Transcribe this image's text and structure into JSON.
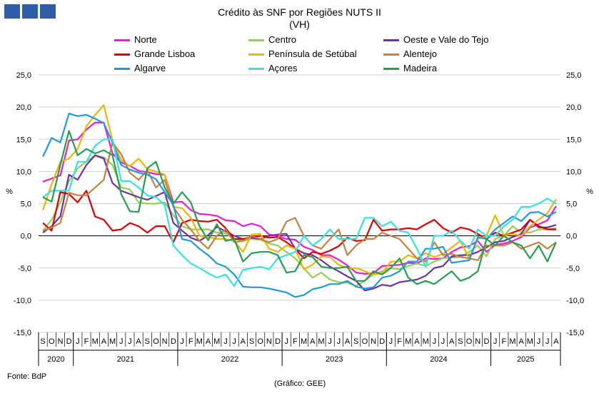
{
  "logo": {
    "blocks": 3,
    "color": "#2b5ea7"
  },
  "title": "Crédito às SNF por Regiões NUTS II",
  "subtitle": "(VH)",
  "source": "Fonte: BdP",
  "credit": "(Gráfico: GEE)",
  "chart_data": {
    "type": "line",
    "title": "Crédito às SNF por Regiões NUTS II",
    "subtitle": "(VH)",
    "ylabel_left": "%",
    "ylabel_right": "%",
    "ylim": [
      -15,
      25
    ],
    "yticks": [
      "25,0",
      "20,0",
      "15,0",
      "10,0",
      "5,0",
      "0,0",
      "-5,0",
      "-10,0",
      "-15,0"
    ],
    "grid": true,
    "legend_position": "top",
    "month_labels": [
      "S",
      "O",
      "N",
      "D",
      "J",
      "F",
      "M",
      "A",
      "M",
      "J",
      "J",
      "A",
      "S",
      "O",
      "N",
      "D",
      "J",
      "F",
      "M",
      "A",
      "M",
      "J",
      "J",
      "A",
      "S",
      "O",
      "N",
      "D",
      "J",
      "F",
      "M",
      "A",
      "M",
      "J",
      "J",
      "A",
      "S",
      "O",
      "N",
      "D",
      "J",
      "F",
      "M",
      "A",
      "M",
      "J",
      "J",
      "A",
      "S",
      "O",
      "N",
      "D",
      "J",
      "F",
      "M",
      "A",
      "M",
      "J",
      "J",
      "A"
    ],
    "year_groups": [
      {
        "label": "2020",
        "months": 4
      },
      {
        "label": "2021",
        "months": 12
      },
      {
        "label": "2022",
        "months": 12
      },
      {
        "label": "2023",
        "months": 12
      },
      {
        "label": "2024",
        "months": 12
      },
      {
        "label": "2025",
        "months": 8
      }
    ],
    "series": [
      {
        "name": "Norte",
        "color": "#e81cd8",
        "values": [
          8.4,
          8.9,
          9.4,
          14.8,
          15.0,
          16.5,
          17.6,
          17.6,
          12.8,
          11.4,
          10.9,
          10.1,
          9.9,
          9.6,
          9.5,
          5.2,
          5.3,
          4.0,
          3.4,
          3.3,
          3.1,
          2.4,
          2.3,
          1.5,
          1.9,
          1.5,
          0.2,
          0.0,
          -0.5,
          -0.6,
          -1.7,
          -2.2,
          -3.0,
          -3.0,
          -3.7,
          -4.6,
          -5.7,
          -5.9,
          -5.8,
          -4.7,
          -4.6,
          -4.5,
          -4.2,
          -4.3,
          -3.5,
          -3.6,
          -3.5,
          -2.5,
          -1.8,
          -1.6,
          -0.8,
          -2.5,
          -1.4,
          -1.2,
          -0.8,
          -0.2,
          1.3,
          1.8,
          2.4,
          4.6
        ]
      },
      {
        "name": "Centro",
        "color": "#92d050",
        "values": [
          0.8,
          2.5,
          5.2,
          8.5,
          10.5,
          11.5,
          12.5,
          12.2,
          11.0,
          7.5,
          7.2,
          5.2,
          5.0,
          5.0,
          5.2,
          3.2,
          1.5,
          1.0,
          1.0,
          1.0,
          0.5,
          0.4,
          -0.5,
          -0.8,
          -0.5,
          -0.6,
          -1.2,
          -1.5,
          -2.5,
          -3.5,
          -5.0,
          -6.5,
          -5.7,
          -6.8,
          -7.2,
          -7.3,
          -7.8,
          -7.0,
          -6.0,
          -5.5,
          -5.0,
          -5.2,
          -4.7,
          -4.3,
          -4.7,
          -4.0,
          -3.5,
          -3.4,
          -3.3,
          -2.5,
          -1.5,
          -3.2,
          -0.5,
          0.0,
          1.5,
          0.5,
          0.5,
          1.0,
          1.0,
          1.2
        ]
      },
      {
        "name": "Oeste e Vale do Tejo",
        "color": "#7030a0",
        "values": [
          0.5,
          1.5,
          3.0,
          9.5,
          8.7,
          11.0,
          12.5,
          12.0,
          8.2,
          7.0,
          6.5,
          6.0,
          5.6,
          6.2,
          6.8,
          2.0,
          0.8,
          -0.3,
          -0.8,
          0.1,
          1.4,
          0.7,
          0.0,
          -0.5,
          -0.3,
          -0.5,
          0.0,
          0.2,
          0.3,
          -2.0,
          -2.7,
          -3.0,
          -3.8,
          -4.8,
          -5.5,
          -6.3,
          -7.0,
          -8.5,
          -8.2,
          -7.6,
          -7.8,
          -7.2,
          -7.0,
          -6.8,
          -6.2,
          -5.0,
          -4.7,
          -3.2,
          -3.0,
          -3.0,
          -2.5,
          -1.8,
          -1.0,
          -0.8,
          -0.2,
          0.3,
          2.5,
          1.3,
          1.3,
          1.7
        ]
      },
      {
        "name": "Grande Lisboa",
        "color": "#e00000",
        "values": [
          2.0,
          0.8,
          6.8,
          6.5,
          5.2,
          7.0,
          3.0,
          2.5,
          0.8,
          1.0,
          2.0,
          1.5,
          0.5,
          1.5,
          1.5,
          -1.0,
          2.0,
          2.5,
          2.3,
          2.2,
          2.5,
          1.2,
          -0.5,
          -0.5,
          -0.2,
          0.0,
          -0.3,
          -0.2,
          -1.0,
          -2.0,
          -3.5,
          -2.5,
          -2.8,
          -2.3,
          -1.6,
          -0.3,
          -0.8,
          -0.7,
          2.5,
          0.8,
          1.0,
          1.0,
          1.2,
          1.0,
          1.8,
          2.5,
          1.2,
          0.5,
          1.3,
          1.0,
          0.3,
          -0.5,
          0.5,
          0.0,
          0.5,
          1.0,
          2.5,
          1.5,
          1.0,
          1.0
        ]
      },
      {
        "name": "Península de Setúbal",
        "color": "#f4b400",
        "values": [
          4.0,
          8.0,
          11.5,
          12.0,
          13.5,
          17.0,
          18.8,
          20.3,
          14.8,
          11.8,
          10.8,
          12.0,
          10.4,
          10.0,
          9.5,
          4.5,
          4.3,
          2.8,
          0.0,
          -0.2,
          -0.5,
          -0.5,
          -0.8,
          -2.5,
          0.2,
          0.3,
          -2.0,
          -2.5,
          -1.5,
          -2.0,
          -5.2,
          -4.5,
          -3.2,
          -3.3,
          -4.5,
          -5.0,
          -5.0,
          -5.5,
          -6.0,
          -5.8,
          -4.0,
          -4.0,
          -3.0,
          -3.5,
          -2.7,
          -3.3,
          -2.8,
          -1.8,
          -0.8,
          -3.5,
          -0.5,
          0.0,
          3.2,
          0.0,
          0.3,
          0.0,
          1.5,
          2.5,
          3.5,
          5.7
        ]
      },
      {
        "name": "Alentejo",
        "color": "#c8823c",
        "values": [
          0.8,
          1.3,
          2.0,
          6.7,
          6.3,
          6.3,
          7.5,
          8.7,
          14.5,
          12.7,
          9.8,
          8.7,
          10.2,
          7.5,
          8.7,
          4.5,
          2.5,
          1.0,
          -0.8,
          -2.0,
          0.0,
          1.0,
          -1.0,
          -0.8,
          0.0,
          -0.5,
          -1.0,
          -0.5,
          2.2,
          2.8,
          0.0,
          -1.5,
          -2.0,
          -0.5,
          1.0,
          -3.0,
          -1.5,
          -0.5,
          -0.5,
          0.5,
          0.0,
          -0.5,
          -2.0,
          -3.5,
          -4.0,
          -1.0,
          -3.0,
          -2.8,
          -3.3,
          -3.5,
          -3.8,
          -1.5,
          -1.5,
          -1.5,
          -1.0,
          -2.0,
          -1.5,
          -1.0,
          -2.0,
          -1.0
        ]
      },
      {
        "name": "Algarve",
        "color": "#1e9be0",
        "values": [
          12.3,
          15.2,
          14.5,
          19.0,
          18.6,
          18.8,
          18.2,
          17.5,
          14.5,
          11.0,
          10.3,
          9.8,
          9.5,
          8.8,
          6.8,
          4.8,
          -0.5,
          -0.8,
          -2.0,
          -3.0,
          -4.3,
          -4.8,
          -6.0,
          -7.9,
          -8.0,
          -8.0,
          -8.2,
          -8.5,
          -8.8,
          -9.5,
          -9.2,
          -8.3,
          -8.0,
          -7.5,
          -7.5,
          -7.0,
          -7.9,
          -8.2,
          -8.0,
          -6.5,
          -6.2,
          -5.5,
          -4.0,
          -4.0,
          -2.0,
          -2.0,
          -1.7,
          -4.2,
          -4.0,
          -3.8,
          -0.2,
          -0.5,
          1.0,
          2.0,
          3.0,
          2.3,
          3.6,
          3.7,
          3.0,
          3.7
        ]
      },
      {
        "name": "Açores",
        "color": "#33e3e8",
        "values": [
          6.0,
          7.0,
          7.0,
          7.0,
          11.5,
          11.5,
          14.0,
          15.0,
          15.0,
          8.5,
          8.5,
          7.5,
          6.3,
          6.0,
          4.8,
          -1.5,
          -3.0,
          -4.3,
          -5.0,
          -5.8,
          -6.5,
          -6.0,
          -7.8,
          -5.3,
          -5.0,
          -4.8,
          -5.2,
          -3.5,
          -3.0,
          -2.5,
          0.0,
          -1.5,
          -0.5,
          1.0,
          -0.5,
          -0.5,
          -0.5,
          2.8,
          2.8,
          1.5,
          2.2,
          0.8,
          0.5,
          -2.0,
          -4.8,
          0.0,
          0.0,
          0.8,
          -0.8,
          -2.0,
          1.0,
          0.0,
          0.0,
          1.5,
          2.5,
          4.5,
          4.5,
          5.0,
          5.8,
          5.0
        ]
      },
      {
        "name": "Madeira",
        "color": "#22a050",
        "values": [
          6.0,
          5.3,
          11.0,
          16.3,
          12.5,
          13.5,
          12.8,
          13.3,
          12.5,
          6.5,
          3.8,
          3.7,
          10.5,
          11.5,
          7.5,
          5.0,
          6.8,
          5.2,
          1.5,
          -0.7,
          1.8,
          -0.8,
          -0.5,
          -4.0,
          -2.7,
          -2.5,
          -2.5,
          -3.0,
          -5.7,
          -5.5,
          -3.0,
          -3.3,
          -4.8,
          -5.0,
          -5.0,
          -4.8,
          -7.0,
          -7.0,
          -5.5,
          -6.0,
          -5.0,
          -3.5,
          -6.5,
          -7.5,
          -7.0,
          -7.5,
          -6.5,
          -5.5,
          -7.0,
          -6.5,
          -5.5,
          -0.5,
          -1.5,
          0.0,
          -1.0,
          -1.5,
          -3.5,
          -1.5,
          -4.0,
          -1.0
        ]
      }
    ]
  }
}
